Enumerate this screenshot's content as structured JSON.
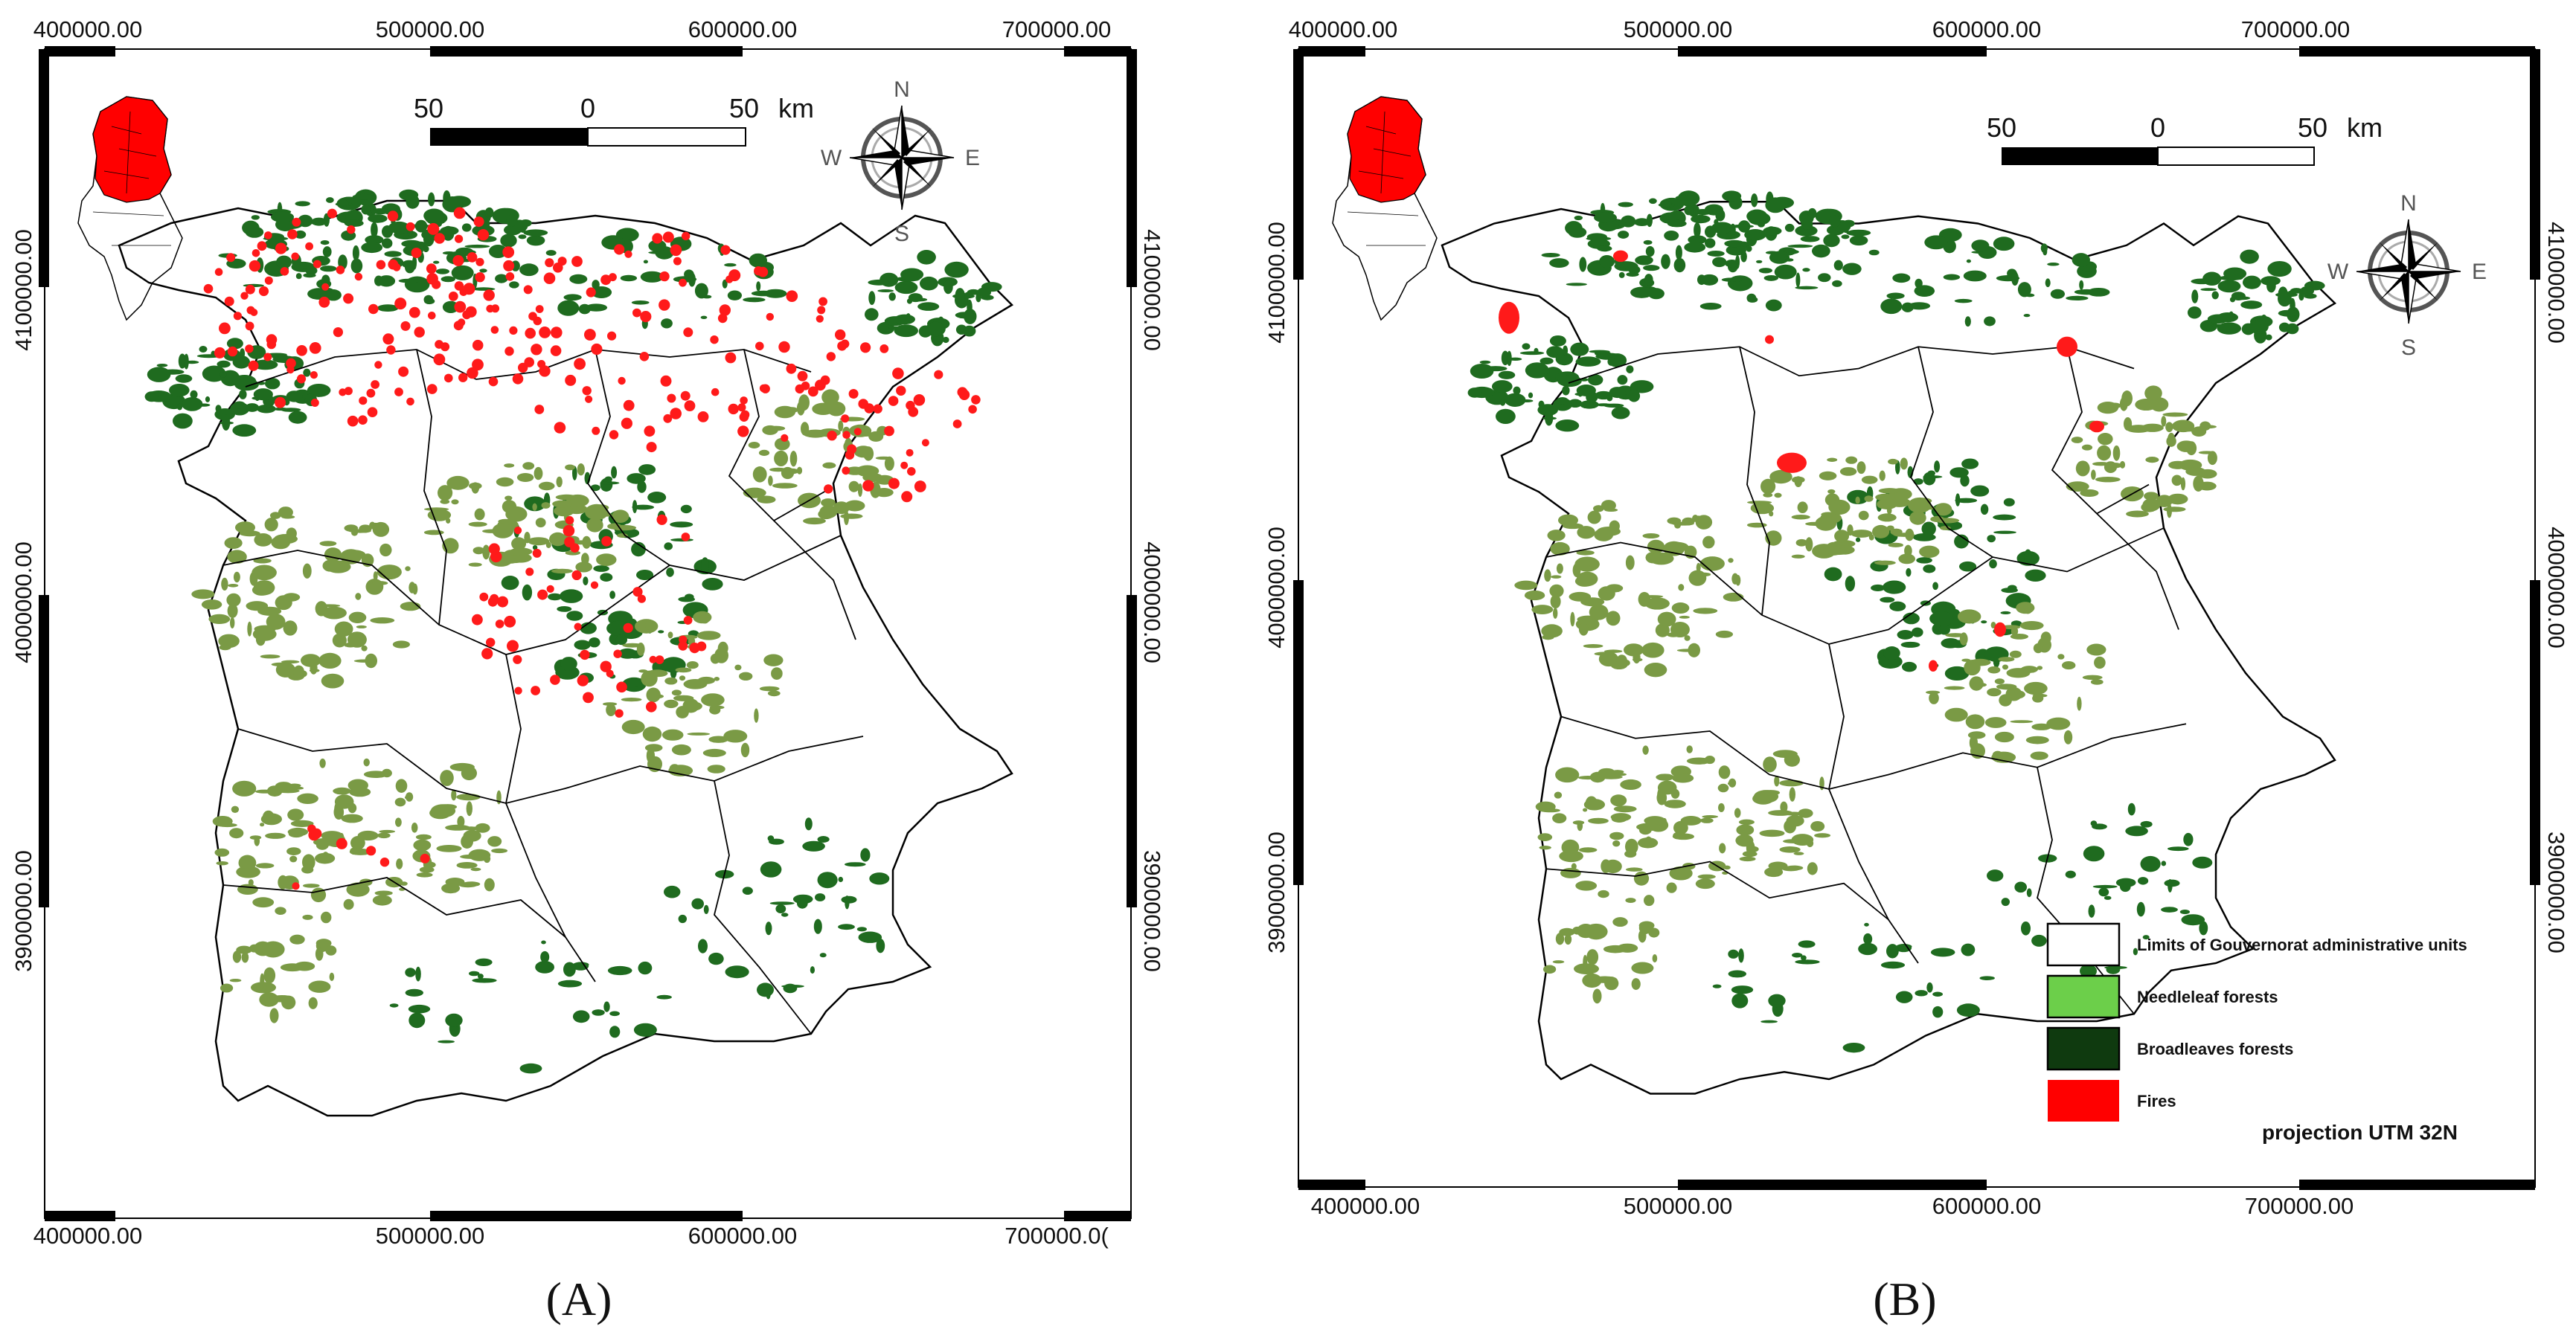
{
  "figure": {
    "panels": [
      {
        "id": "A",
        "label": "(A)",
        "x_ticks": [
          "400000.00",
          "500000.00",
          "600000.00",
          "700000.00"
        ],
        "x_ticks_bottom": [
          "400000.00",
          "500000.00",
          "600000.00",
          "700000.0("
        ],
        "y_ticks": [
          "4100000.00",
          "4000000.00",
          "3900000.00"
        ],
        "scale_bar": {
          "left": "50",
          "mid": "0",
          "right": "50",
          "unit": "km"
        },
        "compass": {
          "n": "N",
          "s": "S",
          "e": "E",
          "w": "W"
        }
      },
      {
        "id": "B",
        "label": "(B)",
        "x_ticks": [
          "400000.00",
          "500000.00",
          "600000.00",
          "700000.00"
        ],
        "x_ticks_bottom": [
          "400000.00",
          "500000.00",
          "600000.00",
          "700000.00"
        ],
        "y_ticks": [
          "4100000.00",
          "4000000.00",
          "3900000.00"
        ],
        "scale_bar": {
          "left": "50",
          "mid": "0",
          "right": "50",
          "unit": "km"
        },
        "compass": {
          "n": "N",
          "s": "S",
          "e": "E",
          "w": "W"
        }
      }
    ],
    "legend": [
      {
        "label": "Limits of Gouvernorat administrative units",
        "color": "#ffffff"
      },
      {
        "label": "Needleleaf forests",
        "color": "#6ccf4a"
      },
      {
        "label": "Broadleaves forests",
        "color": "#0f3a0f"
      },
      {
        "label": "Fires",
        "color": "#ff0000"
      }
    ],
    "projection": "projection UTM 32N"
  },
  "colors": {
    "needleleaf_map": "#7a9a45",
    "broadleaf_map": "#1f6b1f",
    "fires": "#ff1a1a",
    "border": "#000000"
  }
}
